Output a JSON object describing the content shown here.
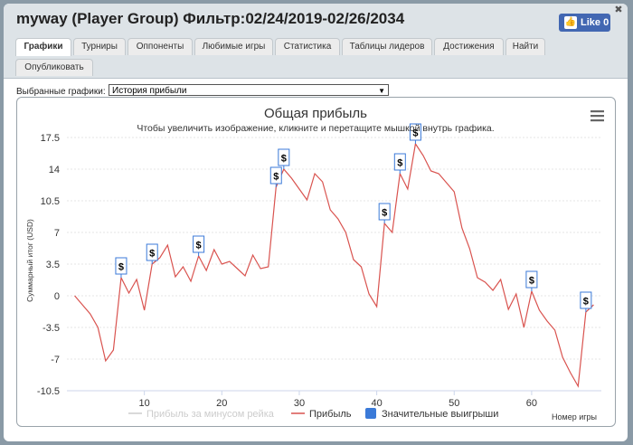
{
  "window": {
    "title": "myway (Player Group) Фильтр:02/24/2019-02/26/2034",
    "like_label": "Like 0",
    "like_icon": "thumbs-up-icon",
    "close_icon": "close-icon"
  },
  "tabs": [
    {
      "label": "Графики",
      "active": true
    },
    {
      "label": "Турниры"
    },
    {
      "label": "Оппоненты"
    },
    {
      "label": "Любимые игры"
    },
    {
      "label": "Статистика"
    },
    {
      "label": "Таблицы лидеров"
    },
    {
      "label": "Достижения"
    },
    {
      "label": "Найти"
    },
    {
      "label": "Опубликовать"
    }
  ],
  "selector": {
    "label": "Выбранные графики:",
    "value": "История прибыли"
  },
  "chart_data": {
    "type": "line",
    "title": "Общая прибыль",
    "subtitle": "Чтобы увеличить изображение, кликните и перетащите мышкой внутрь графика.",
    "ylabel": "Суммарный итог (USD)",
    "xlabel": "Номер игры",
    "ylim": [
      -10.5,
      17.5
    ],
    "xlim": [
      0,
      69
    ],
    "y_ticks": [
      "-10.5",
      "-7",
      "-3.5",
      "0",
      "3.5",
      "7",
      "10.5",
      "14",
      "17.5"
    ],
    "x_ticks": [
      "10",
      "20",
      "30",
      "40",
      "50",
      "60"
    ],
    "grid": true,
    "legend_position": "bottom",
    "series": [
      {
        "name": "Прибыль за минусом рейка",
        "color": "#cccccc",
        "visible": false
      },
      {
        "name": "Прибыль",
        "color": "#d9534f",
        "x": [
          1,
          2,
          3,
          4,
          5,
          6,
          7,
          8,
          9,
          10,
          11,
          12,
          13,
          14,
          15,
          16,
          17,
          18,
          19,
          20,
          21,
          22,
          23,
          24,
          25,
          26,
          27,
          28,
          29,
          30,
          31,
          32,
          33,
          34,
          35,
          36,
          37,
          38,
          39,
          40,
          41,
          42,
          43,
          44,
          45,
          46,
          47,
          48,
          49,
          50,
          51,
          52,
          53,
          54,
          55,
          56,
          57,
          58,
          59,
          60,
          61,
          62,
          63,
          64,
          65,
          66,
          67,
          68
        ],
        "y": [
          0,
          -1,
          -2,
          -3.5,
          -7.2,
          -6,
          2,
          0.3,
          1.8,
          -1.6,
          3.5,
          4.2,
          5.6,
          2.1,
          3.2,
          1.6,
          4.4,
          2.8,
          5.1,
          3.5,
          3.8,
          3,
          2.2,
          4.5,
          3,
          3.2,
          12,
          14,
          13,
          11.8,
          10.6,
          13.5,
          12.6,
          9.5,
          8.5,
          7,
          4,
          3.2,
          0.2,
          -1.2,
          8,
          7,
          13.5,
          11.8,
          16.8,
          15.5,
          13.8,
          13.5,
          12.5,
          11.5,
          7.5,
          5.2,
          2,
          1.5,
          0.6,
          1.8,
          -1.5,
          0.2,
          -3.5,
          0.5,
          -1.6,
          -2.8,
          -3.8,
          -6.8,
          -8.5,
          -10,
          -1.8,
          -1
        ]
      },
      {
        "name": "Значительные выигрыши",
        "color": "#3b7ad8",
        "type": "flag"
      }
    ],
    "flag_x": [
      7,
      11,
      17,
      27,
      28,
      41,
      43,
      45,
      60,
      67
    ],
    "flag_text": "$"
  }
}
